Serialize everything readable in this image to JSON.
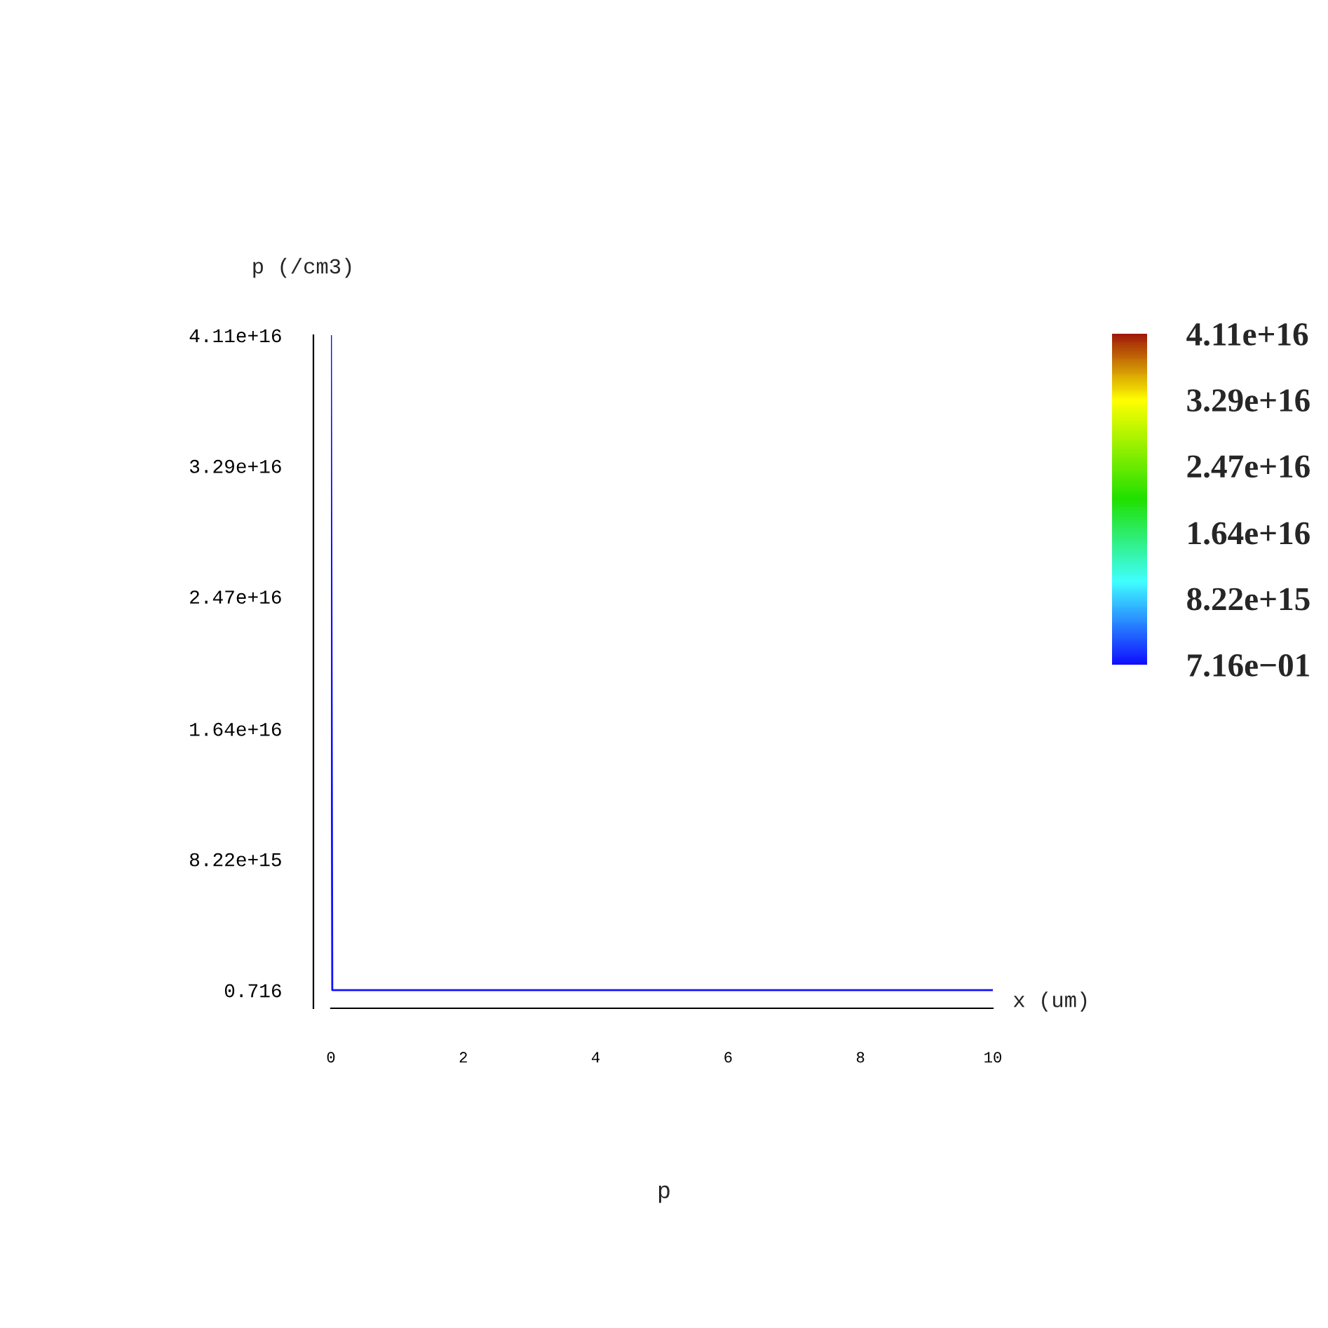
{
  "chart_data": {
    "type": "line",
    "title": "p",
    "xlabel": "x (um)",
    "ylabel": "p (/cm3)",
    "x": [
      0,
      0.02,
      10
    ],
    "series": [
      {
        "color": "#1010ff",
        "values": [
          4.11e+16,
          0.716,
          0.716
        ]
      }
    ],
    "xlim": [
      0,
      10
    ],
    "xticks": [
      0,
      2,
      4,
      6,
      8,
      10
    ],
    "ylim": [
      -1140000000000000.0,
      4.11e+16
    ],
    "yticks": [
      {
        "value": 0.716,
        "label": "0.716"
      },
      {
        "value": 8220000000000000.0,
        "label": "8.22e+15"
      },
      {
        "value": 1.64e+16,
        "label": "1.64e+16"
      },
      {
        "value": 2.47e+16,
        "label": "2.47e+16"
      },
      {
        "value": 3.29e+16,
        "label": "3.29e+16"
      },
      {
        "value": 4.11e+16,
        "label": "4.11e+16"
      }
    ],
    "clim": [
      0.716,
      4.11e+16
    ],
    "cticks": [
      {
        "value": 0.716,
        "label": "7.16e−01"
      },
      {
        "value": 8220000000000000.0,
        "label": "8.22e+15"
      },
      {
        "value": 1.64e+16,
        "label": "1.64e+16"
      },
      {
        "value": 2.47e+16,
        "label": "2.47e+16"
      },
      {
        "value": 3.29e+16,
        "label": "3.29e+16"
      },
      {
        "value": 4.11e+16,
        "label": "4.11e+16"
      }
    ],
    "grid": false,
    "legend": false
  }
}
